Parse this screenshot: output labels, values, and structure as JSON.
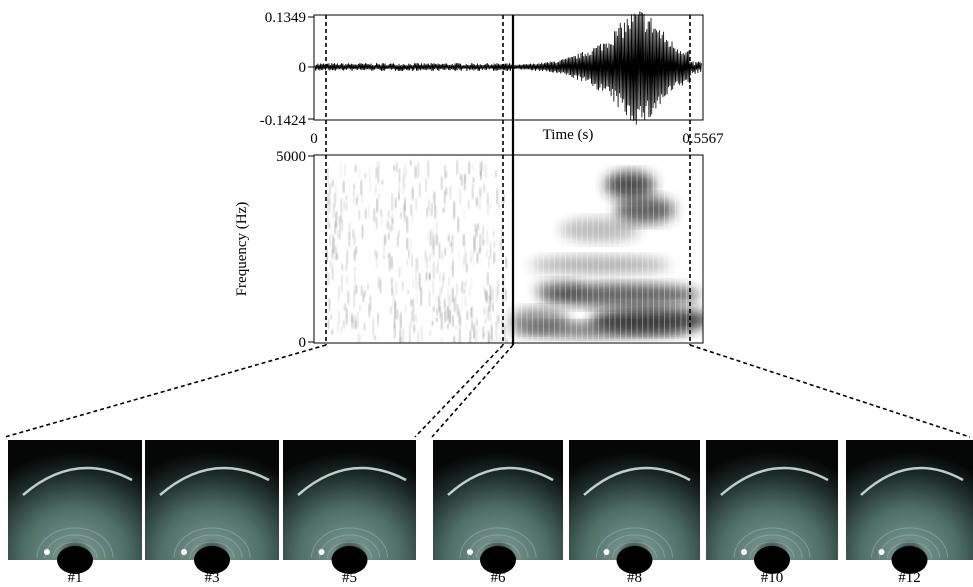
{
  "waveform": {
    "yticks": [
      "0.1349",
      "0",
      "-0.1424"
    ],
    "xticks": [
      "0",
      "0.5567"
    ],
    "xlabel": "Time (s)"
  },
  "spectrogram": {
    "ylabel": "Frequency (Hz)",
    "yticks": [
      "5000",
      "0"
    ]
  },
  "images": [
    {
      "label": "#1"
    },
    {
      "label": "#3"
    },
    {
      "label": "#5"
    },
    {
      "label": "#6"
    },
    {
      "label": "#8"
    },
    {
      "label": "#10"
    },
    {
      "label": "#12"
    }
  ]
}
